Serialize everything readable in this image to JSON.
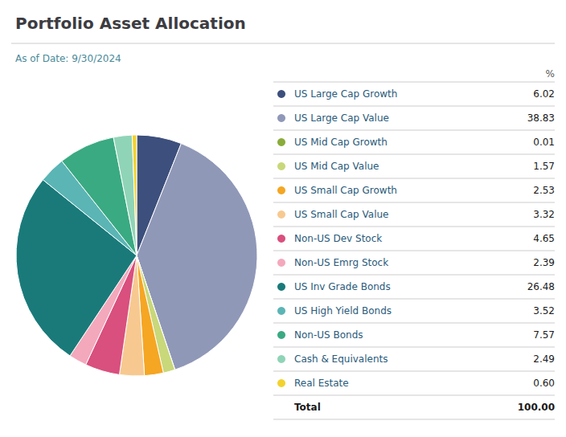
{
  "chart_data": {
    "type": "pie",
    "title": "Portfolio Asset Allocation",
    "subtitle": "As of Date: 9/30/2024",
    "categories": [
      "US Large Cap Growth",
      "US Large Cap Value",
      "US Mid Cap Growth",
      "US Mid Cap Value",
      "US Small Cap Growth",
      "US Small Cap Value",
      "Non-US Dev Stock",
      "Non-US Emrg Stock",
      "US Inv Grade Bonds",
      "US High Yield Bonds",
      "Non-US Bonds",
      "Cash & Equivalents",
      "Real Estate"
    ],
    "values": [
      6.02,
      38.83,
      0.01,
      1.57,
      2.53,
      3.32,
      4.65,
      2.39,
      26.48,
      3.52,
      7.57,
      2.49,
      0.6
    ],
    "value_labels": [
      "6.02",
      "38.83",
      "0.01",
      "1.57",
      "2.53",
      "3.32",
      "4.65",
      "2.39",
      "26.48",
      "3.52",
      "7.57",
      "2.49",
      "0.60"
    ],
    "colors": [
      "#3d4f7c",
      "#9098b8",
      "#8aac3a",
      "#c8d87a",
      "#f5a623",
      "#f7c990",
      "#d94f7e",
      "#f4a8bc",
      "#1a7a7a",
      "#5bb5b5",
      "#3aaa82",
      "#90d4b8",
      "#f2d22e"
    ],
    "table_header": "%",
    "total": {
      "label": "Total",
      "value": 100,
      "value_label": "100.00"
    }
  }
}
